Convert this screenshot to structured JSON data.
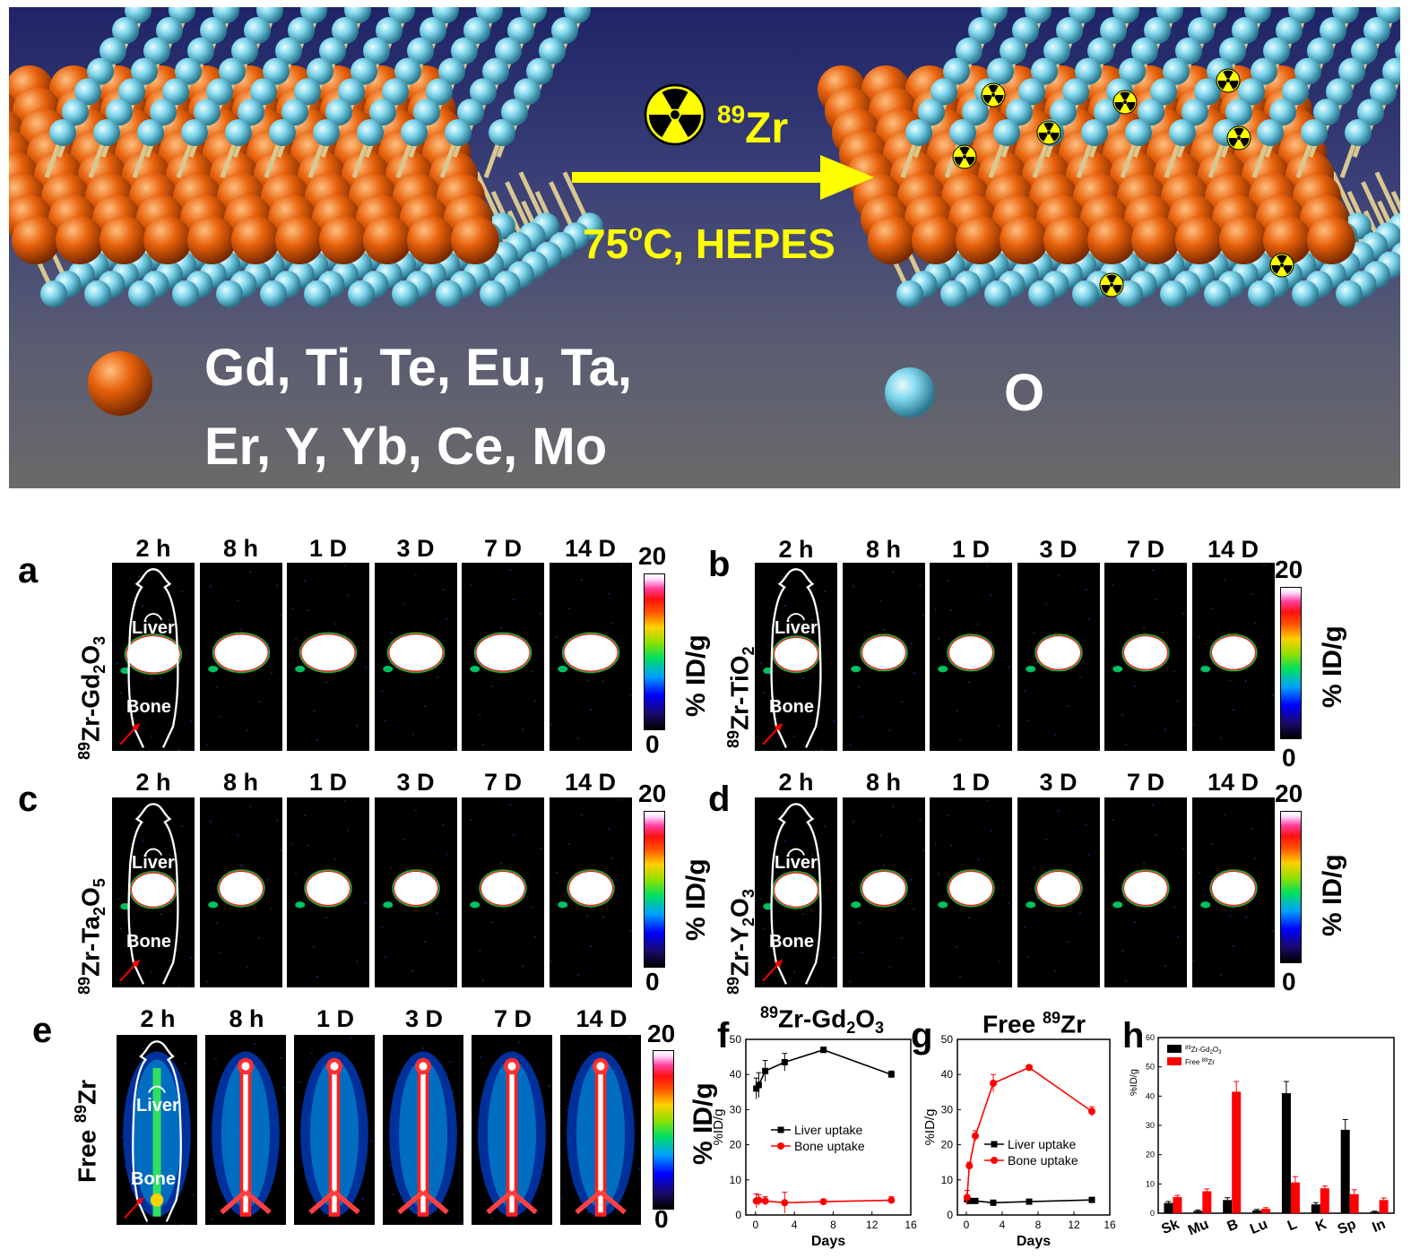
{
  "banner": {
    "isotope": {
      "mass": "89",
      "symbol": "Zr"
    },
    "condition": {
      "temp": "75",
      "temp_sup": "o",
      "rest": "C, HEPES"
    },
    "metals_line1": "Gd, Ti, Te, Eu, Ta,",
    "metals_line2": "Er, Y, Yb, Ce, Mo",
    "oxygen": "O",
    "colors": {
      "metal": "#e8620c",
      "oxygen": "#7fd6ec",
      "arrow": "#ffff00",
      "bond": "#d8c890"
    },
    "icons": [
      "radiation-icon"
    ]
  },
  "colorbar": {
    "max": "20",
    "min": "0",
    "unit": "% ID/g"
  },
  "organ_labels": {
    "liver": "Liver",
    "bone": "Bone"
  },
  "timepoints": [
    "2 h",
    "8 h",
    "1 D",
    "3 D",
    "7 D",
    "14 D"
  ],
  "panels": {
    "a": {
      "letter": "a",
      "pre": "89",
      "name": "Zr-Gd",
      "sub1": "2",
      "mid": "O",
      "sub2": "3"
    },
    "b": {
      "letter": "b",
      "pre": "89",
      "name": "Zr-TiO",
      "sub1": "2",
      "mid": "",
      "sub2": ""
    },
    "c": {
      "letter": "c",
      "pre": "89",
      "name": "Zr-Ta",
      "sub1": "2",
      "mid": "O",
      "sub2": "5"
    },
    "d": {
      "letter": "d",
      "pre": "89",
      "name": "Zr-Y",
      "sub1": "2",
      "mid": "O",
      "sub2": "3"
    },
    "e": {
      "letter": "e",
      "free": "Free ",
      "pre": "89",
      "name": "Zr"
    }
  },
  "chart_data": [
    {
      "panel": "f",
      "type": "line",
      "title": {
        "pre": "89",
        "name": "Zr-Gd",
        "sub1": "2",
        "mid": "O",
        "sub2": "3"
      },
      "xlabel": "Days",
      "ylabel": "%ID/g",
      "xlim": [
        -1,
        16
      ],
      "ylim": [
        0,
        50
      ],
      "xticks": [
        "0",
        "4",
        "8",
        "12",
        "16"
      ],
      "yticks": [
        "0",
        "10",
        "20",
        "30",
        "40",
        "50"
      ],
      "legend_position": "lower-center",
      "series": [
        {
          "name": "Liver uptake",
          "color": "#000000",
          "marker": "square",
          "x": [
            0.08,
            0.33,
            1,
            3,
            7,
            14
          ],
          "y": [
            36,
            37,
            41,
            43.5,
            47,
            40
          ],
          "err": [
            3,
            3.5,
            3,
            2.5,
            0.8,
            1
          ]
        },
        {
          "name": "Bone uptake",
          "color": "#ff0000",
          "marker": "circle",
          "x": [
            0.08,
            0.33,
            1,
            3,
            7,
            14
          ],
          "y": [
            4,
            4.2,
            4,
            3.5,
            3.8,
            4.2
          ],
          "err": [
            2,
            1.5,
            1.2,
            3,
            0.5,
            1
          ]
        }
      ]
    },
    {
      "panel": "g",
      "type": "line",
      "title": {
        "free": "Free ",
        "pre": "89",
        "name": "Zr"
      },
      "xlabel": "Days",
      "ylabel": "%ID/g",
      "xlim": [
        -1,
        16
      ],
      "ylim": [
        0,
        50
      ],
      "xticks": [
        "0",
        "4",
        "8",
        "12",
        "16"
      ],
      "yticks": [
        "0",
        "10",
        "20",
        "30",
        "40",
        "50"
      ],
      "legend_position": "lower-center",
      "series": [
        {
          "name": "Liver uptake",
          "color": "#000000",
          "marker": "square",
          "x": [
            0.08,
            0.33,
            1,
            3,
            7,
            14
          ],
          "y": [
            4.5,
            4,
            4,
            3.5,
            3.8,
            4.3
          ],
          "err": [
            0.5,
            0.4,
            0.4,
            0.4,
            0.3,
            0.3
          ]
        },
        {
          "name": "Bone uptake",
          "color": "#ff0000",
          "marker": "circle",
          "x": [
            0.08,
            0.33,
            1,
            3,
            7,
            14
          ],
          "y": [
            5,
            14,
            22.5,
            37.5,
            42,
            29.5
          ],
          "err": [
            2,
            1,
            1.5,
            2.5,
            0.5,
            1.3
          ]
        }
      ]
    },
    {
      "panel": "h",
      "type": "bar",
      "ylabel": "%ID/g",
      "ylim": [
        0,
        60
      ],
      "yticks": [
        "0",
        "10",
        "20",
        "30",
        "40",
        "50",
        "60"
      ],
      "categories": [
        "Sk",
        "Mu",
        "B",
        "Lu",
        "L",
        "K",
        "Sp",
        "In"
      ],
      "legend_position": "top-left",
      "series": [
        {
          "name_pre": "89",
          "name": "Zr-Gd",
          "name_sub1": "2",
          "name_mid": "O",
          "name_sub2": "3",
          "color": "#000000",
          "values": [
            3.5,
            0.8,
            4.5,
            1,
            41,
            3,
            28.5,
            0.5
          ],
          "err": [
            0.5,
            0.3,
            0.8,
            0.3,
            4,
            0.6,
            3.5,
            0.2
          ]
        },
        {
          "name_free": "Free ",
          "name_pre": "89",
          "name": "Zr",
          "color": "#ff0000",
          "values": [
            5.5,
            7.5,
            41.5,
            1.5,
            10.5,
            8.5,
            6.5,
            4.5
          ],
          "err": [
            0.6,
            0.8,
            3.5,
            0.4,
            2,
            0.8,
            1.5,
            0.7
          ]
        }
      ]
    }
  ]
}
